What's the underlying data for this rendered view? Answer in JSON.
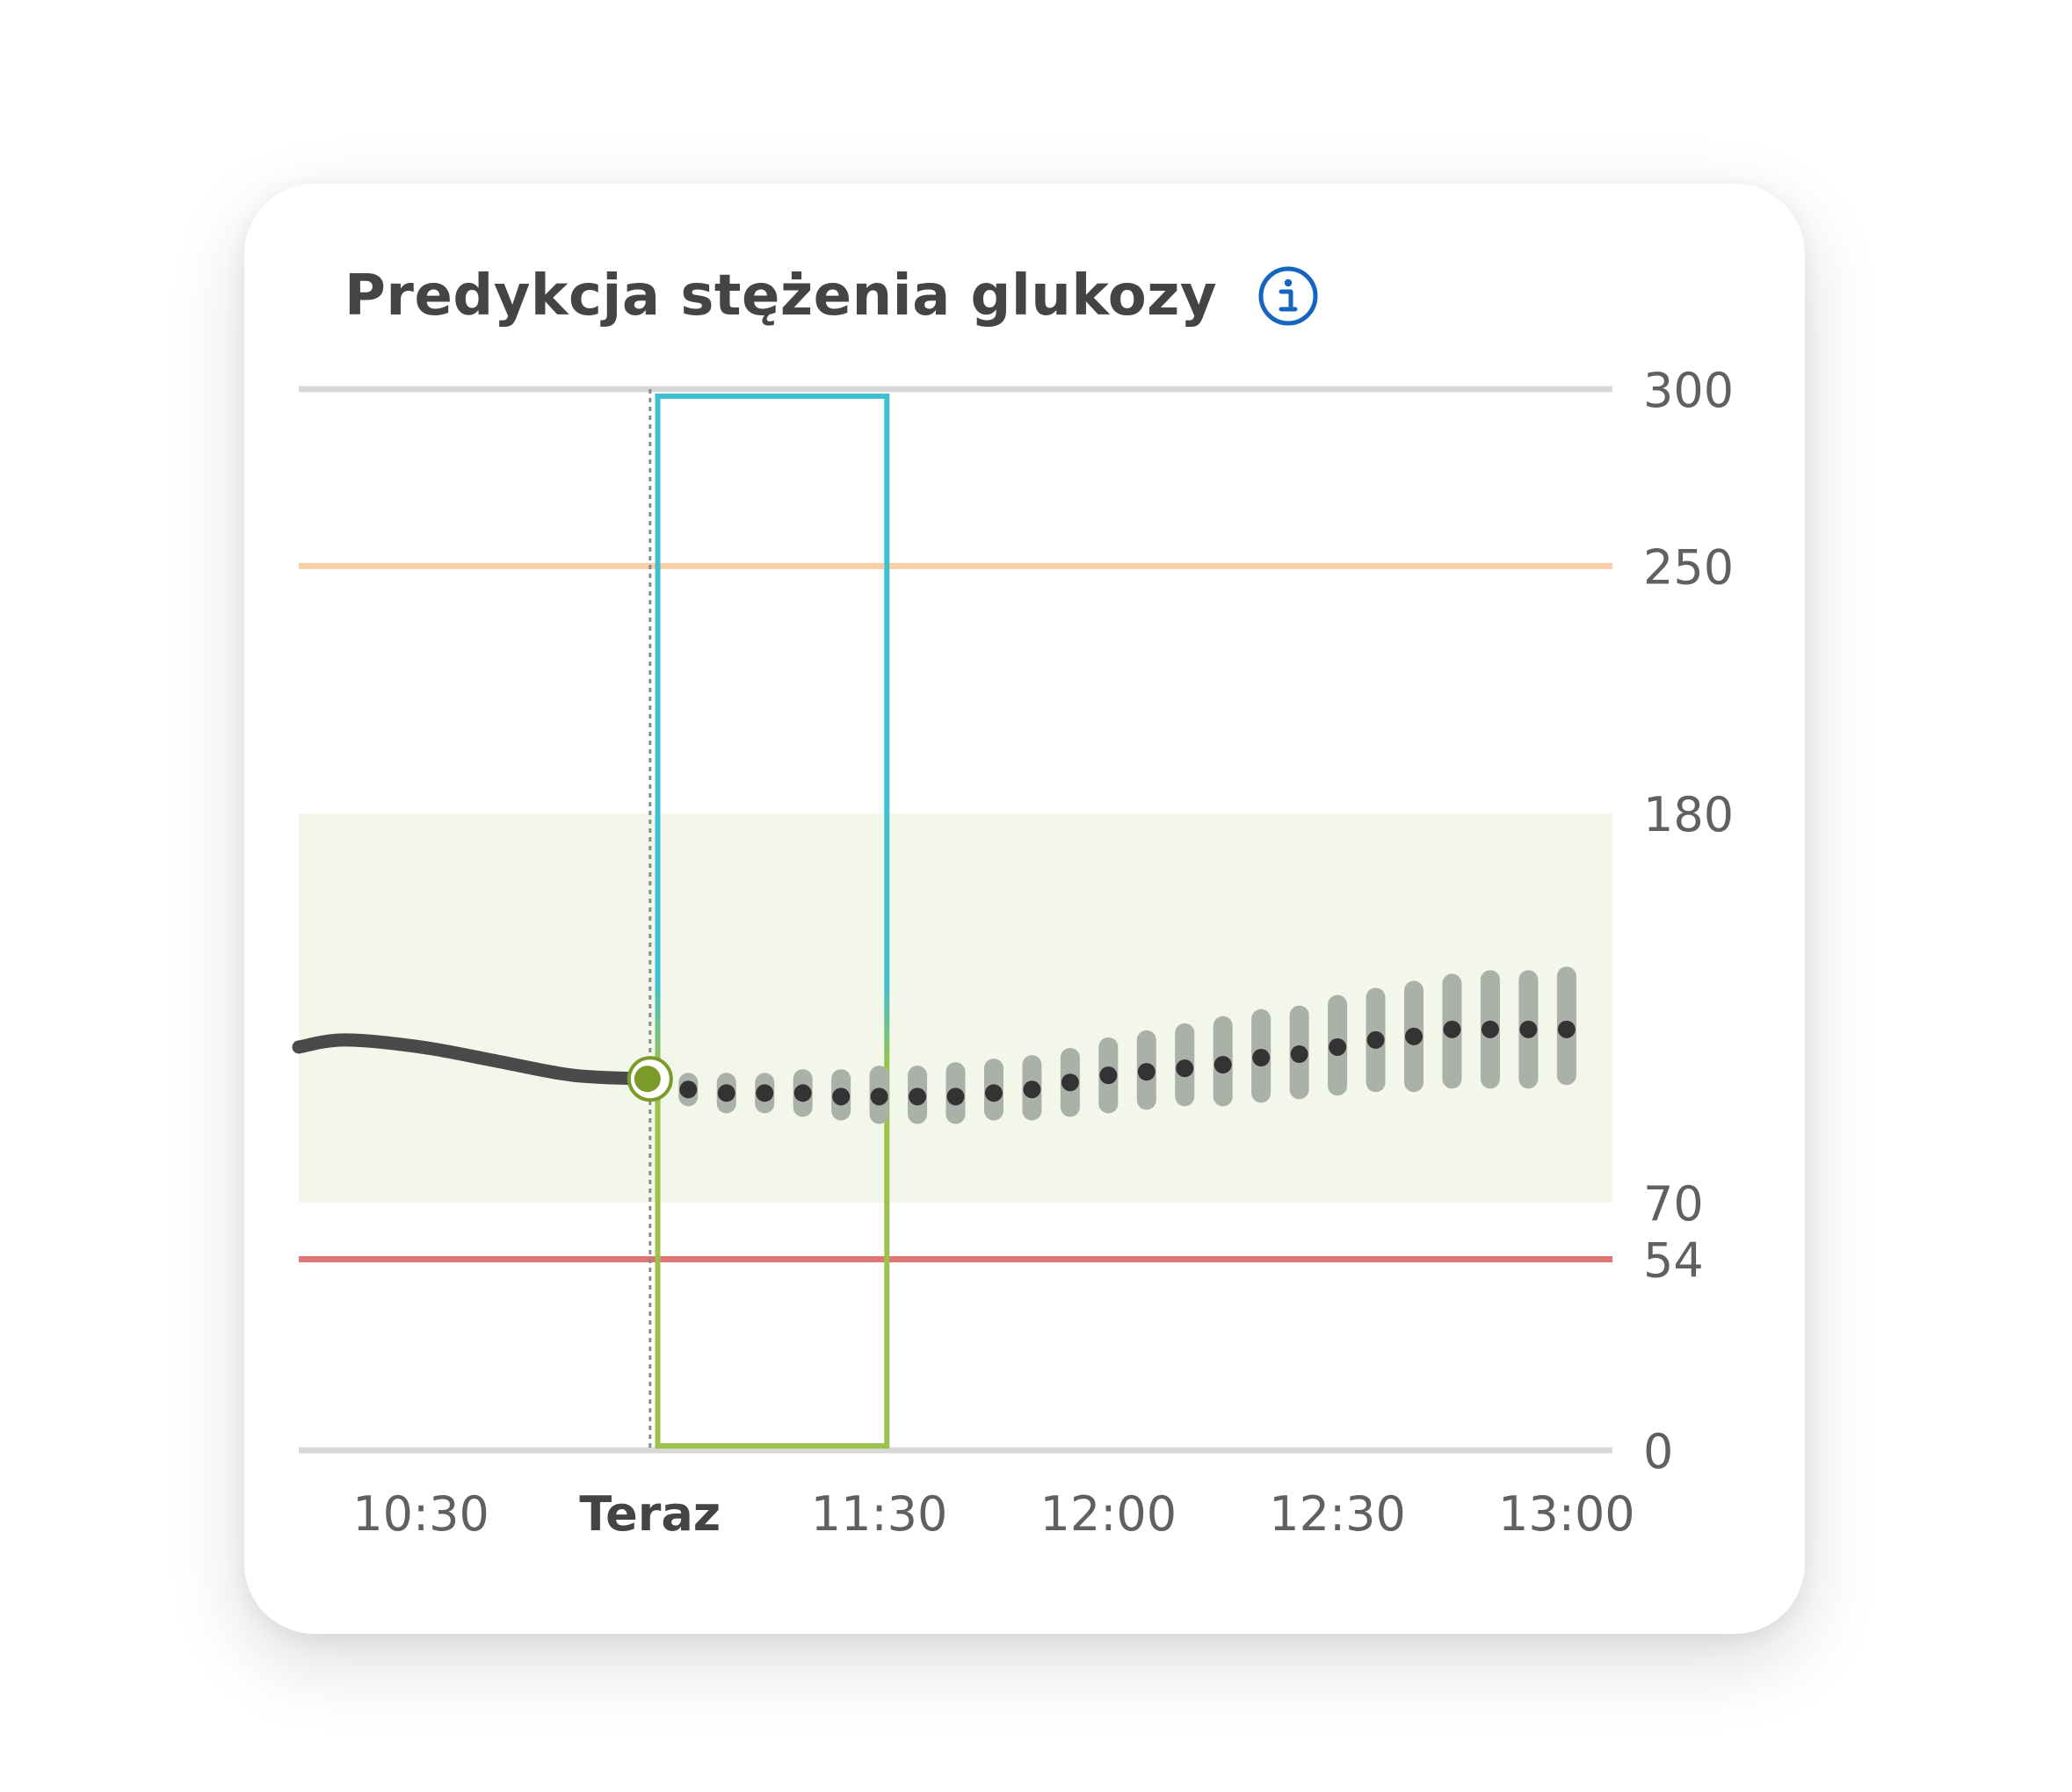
{
  "card": {
    "title": "Predykcja stężenia glukozy",
    "info_icon": "info-icon"
  },
  "colors": {
    "title": "#444444",
    "info": "#1565c0",
    "target_band": "#f3f7ea",
    "high_line": "#fbd0a8",
    "low_line": "#e07575",
    "grid": "#d8d8d8",
    "history_line": "#4a4a4a",
    "prediction_dot": "#333333",
    "uncertainty_bar": "#abb0a8",
    "now_marker": "#7a9a2a",
    "window_top": "#3fbfcf",
    "window_bottom": "#9bc24a",
    "axis_text": "#606060"
  },
  "chart_data": {
    "type": "line",
    "title": "Predykcja stężenia glukozy",
    "xlabel": "",
    "ylabel": "",
    "ylim": [
      0,
      300
    ],
    "xlim": [
      "10:14",
      "13:06"
    ],
    "grid": false,
    "legend": "none",
    "x_ticks": [
      {
        "label": "10:30",
        "x": "10:30",
        "bold": false
      },
      {
        "label": "Teraz",
        "x": "11:00",
        "bold": true
      },
      {
        "label": "11:30",
        "x": "11:30",
        "bold": false
      },
      {
        "label": "12:00",
        "x": "12:00",
        "bold": false
      },
      {
        "label": "12:30",
        "x": "12:30",
        "bold": false
      },
      {
        "label": "13:00",
        "x": "13:00",
        "bold": false
      }
    ],
    "y_ticks": [
      300,
      250,
      180,
      70,
      54,
      0
    ],
    "reference_lines": [
      {
        "name": "high",
        "y": 250
      },
      {
        "name": "low",
        "y": 54
      },
      {
        "name": "top",
        "y": 300
      },
      {
        "name": "bottom",
        "y": 0
      }
    ],
    "target_range": [
      70,
      180
    ],
    "now": "11:00",
    "now_value": 105,
    "highlight_window": {
      "from": "11:01",
      "to": "11:31"
    },
    "history": [
      {
        "x": "10:14",
        "y": 114
      },
      {
        "x": "10:20",
        "y": 116
      },
      {
        "x": "10:30",
        "y": 114
      },
      {
        "x": "10:40",
        "y": 110
      },
      {
        "x": "10:50",
        "y": 106
      },
      {
        "x": "11:00",
        "y": 105
      }
    ],
    "prediction": [
      {
        "x": "11:05",
        "y": 102,
        "low": 100,
        "high": 104
      },
      {
        "x": "11:10",
        "y": 101,
        "low": 98,
        "high": 104
      },
      {
        "x": "11:15",
        "y": 101,
        "low": 98,
        "high": 104
      },
      {
        "x": "11:20",
        "y": 101,
        "low": 97,
        "high": 105
      },
      {
        "x": "11:25",
        "y": 100,
        "low": 96,
        "high": 105
      },
      {
        "x": "11:30",
        "y": 100,
        "low": 95,
        "high": 106
      },
      {
        "x": "11:35",
        "y": 100,
        "low": 95,
        "high": 106
      },
      {
        "x": "11:40",
        "y": 100,
        "low": 95,
        "high": 107
      },
      {
        "x": "11:45",
        "y": 101,
        "low": 96,
        "high": 108
      },
      {
        "x": "11:50",
        "y": 102,
        "low": 96,
        "high": 109
      },
      {
        "x": "11:55",
        "y": 104,
        "low": 97,
        "high": 111
      },
      {
        "x": "12:00",
        "y": 106,
        "low": 98,
        "high": 114
      },
      {
        "x": "12:05",
        "y": 107,
        "low": 99,
        "high": 116
      },
      {
        "x": "12:10",
        "y": 108,
        "low": 100,
        "high": 118
      },
      {
        "x": "12:15",
        "y": 109,
        "low": 100,
        "high": 120
      },
      {
        "x": "12:20",
        "y": 111,
        "low": 101,
        "high": 122
      },
      {
        "x": "12:25",
        "y": 112,
        "low": 102,
        "high": 123
      },
      {
        "x": "12:30",
        "y": 114,
        "low": 103,
        "high": 126
      },
      {
        "x": "12:35",
        "y": 116,
        "low": 104,
        "high": 128
      },
      {
        "x": "12:40",
        "y": 117,
        "low": 104,
        "high": 130
      },
      {
        "x": "12:45",
        "y": 119,
        "low": 105,
        "high": 132
      },
      {
        "x": "12:50",
        "y": 119,
        "low": 105,
        "high": 133
      },
      {
        "x": "12:55",
        "y": 119,
        "low": 105,
        "high": 133
      },
      {
        "x": "13:00",
        "y": 119,
        "low": 106,
        "high": 134
      }
    ]
  }
}
